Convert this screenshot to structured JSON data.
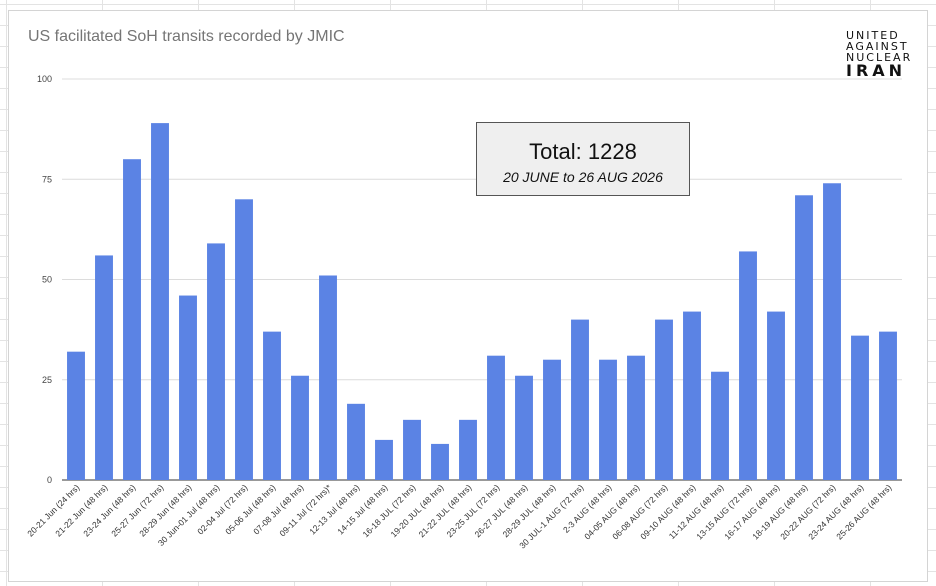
{
  "chart_data": {
    "type": "bar",
    "title": "US facilitated SoH transits recorded by JMIC",
    "xlabel": "",
    "ylabel": "",
    "ylim": [
      0,
      100
    ],
    "yticks": [
      "0",
      "25",
      "50",
      "75",
      "100"
    ],
    "grid": true,
    "bar_color": "#5b83e4",
    "categories": [
      "20-21 Jun (24 hrs)",
      "21-22 Jun (48 hrs)",
      "23-24 Jun (48 hrs)",
      "25-27 Jun (72 hrs)",
      "28-29 Jun (48 hrs)",
      "30 Jun-01 Jul (48 hrs)",
      "02-04 Jul (72 hrs)",
      "05-06 Jul (48 hrs)",
      "07-08 Jul (48 hrs)",
      "09-11 Jul (72 hrs)*",
      "12-13 Jul (48 hrs)",
      "14-15 Jul (48 hrs)",
      "16-18 JUL (72 hrs)",
      "19-20 JUL (48 hrs)",
      "21-22 JUL (48 hrs)",
      "23-25 JUL (72 hrs)",
      "26-27 JUL (48 hrs)",
      "28-29 JUL (48 hrs)",
      "30 JUL-1 AUG (72 hrs)",
      "2-3 AUG (48 hrs)",
      "04-05 AUG (48 hrs)",
      "06-08 AUG (72 hrs)",
      "09-10 AUG (48 hrs)",
      "11-12 AUG (48 hrs)",
      "13-15 AUG (72 hrs)",
      "16-17 AUG (48 hrs)",
      "18-19 AUG (48 hrs)",
      "20-22 AUG (72 hrs)",
      "23-24 AUG (48 hrs)",
      "25-26 AUG (48 hrs)"
    ],
    "values": [
      32,
      56,
      80,
      89,
      46,
      59,
      70,
      37,
      26,
      51,
      19,
      10,
      15,
      9,
      15,
      31,
      26,
      30,
      40,
      30,
      31,
      40,
      42,
      27,
      57,
      42,
      71,
      74,
      36,
      37
    ]
  },
  "annotation": {
    "total": "Total: 1228",
    "range": "20 JUNE to 26 AUG 2026"
  },
  "logo": {
    "line1": "UNITED",
    "line2": "AGAINST",
    "line3": "NUCLEAR",
    "line4": "IRAN"
  }
}
